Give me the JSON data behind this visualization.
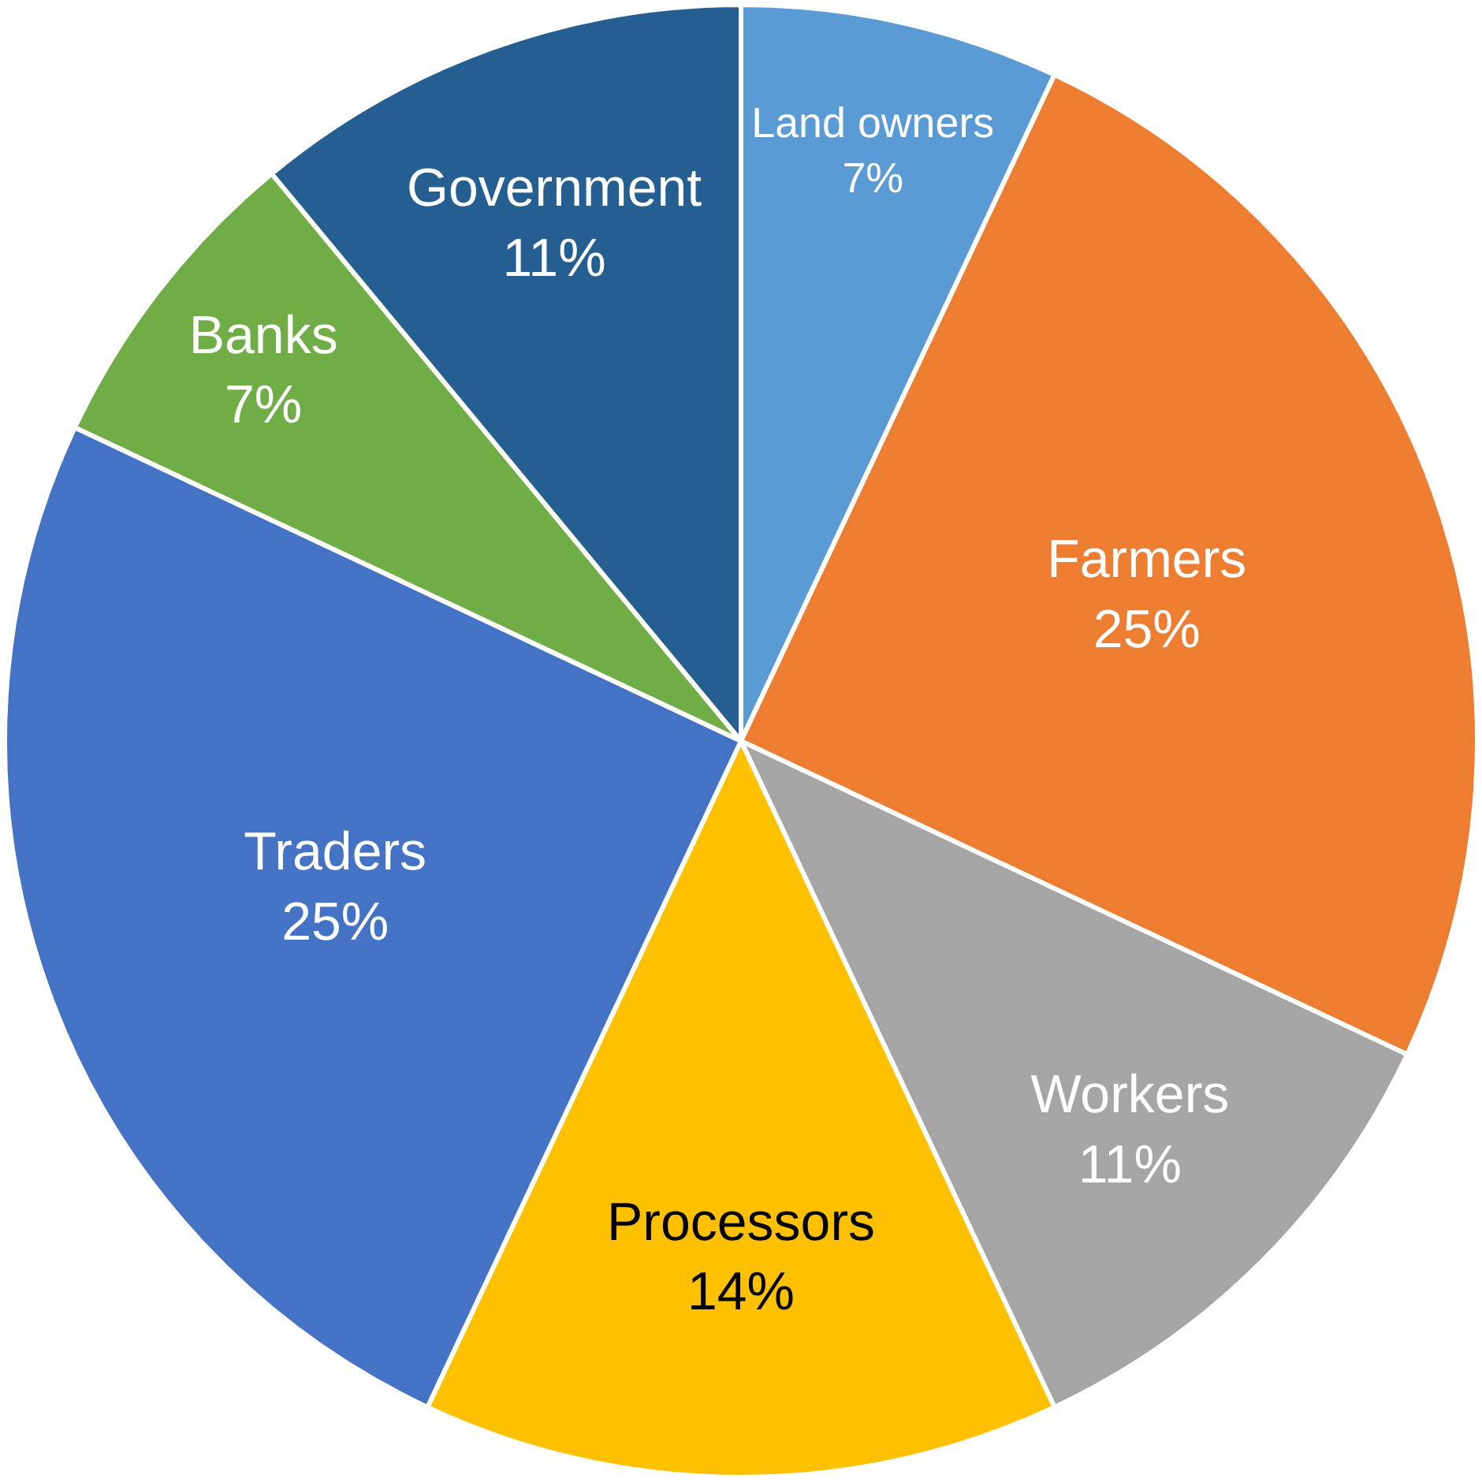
{
  "chart_data": {
    "type": "pie",
    "categories": [
      "Land owners",
      "Farmers",
      "Workers",
      "Processors",
      "Traders",
      "Banks",
      "Government"
    ],
    "values": [
      7,
      25,
      11,
      14,
      25,
      7,
      11
    ],
    "value_labels": [
      "7%",
      "25%",
      "11%",
      "14%",
      "25%",
      "7%",
      "11%"
    ],
    "colors": [
      "#5b9bd5",
      "#ed7d31",
      "#a5a5a5",
      "#ffc000",
      "#4472c4",
      "#70ad47",
      "#255e91"
    ],
    "legend": false
  }
}
